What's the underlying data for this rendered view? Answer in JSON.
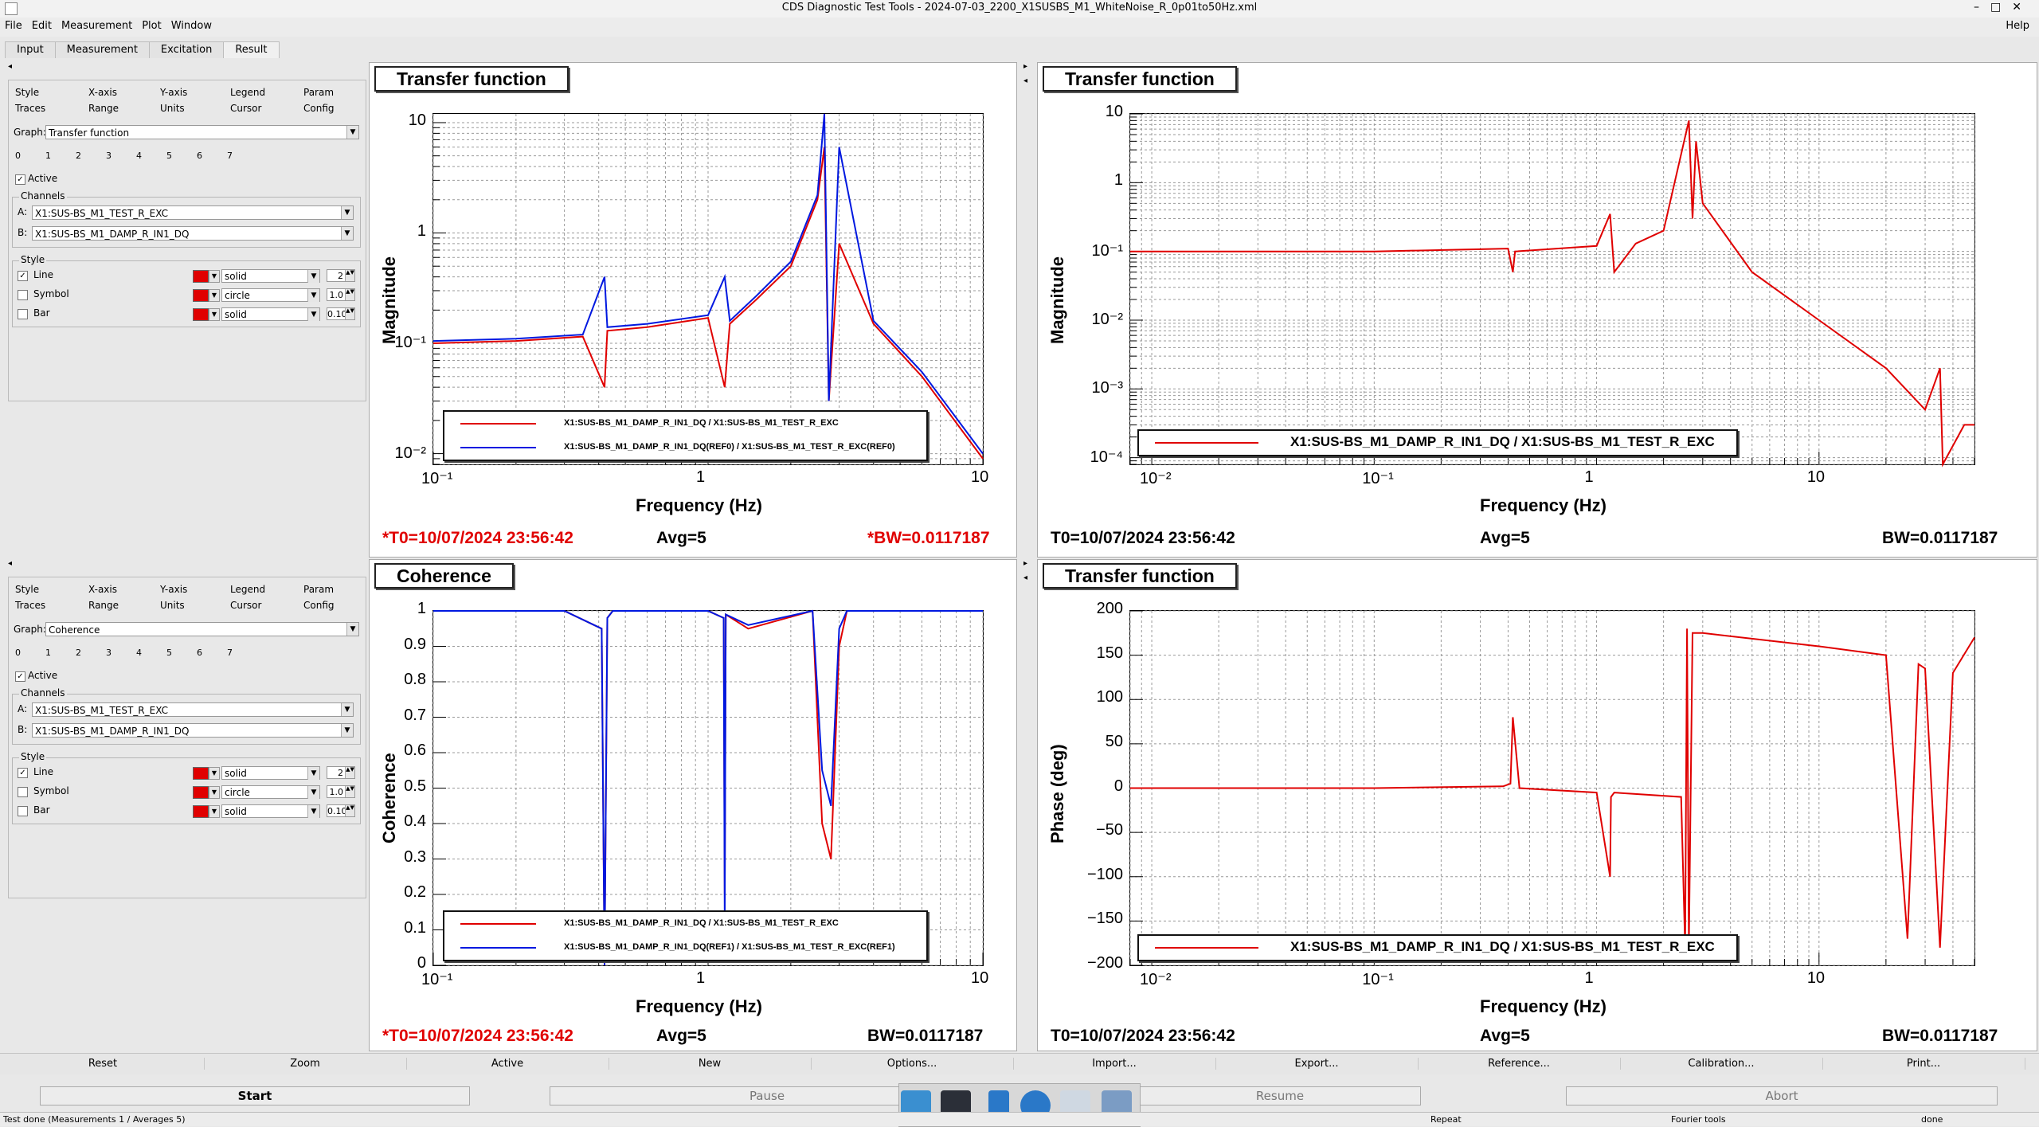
{
  "window": {
    "title": "CDS Diagnostic Test Tools - 2024-07-03_2200_X1SUSBS_M1_WhiteNoise_R_0p01to50Hz.xml",
    "controls": [
      "–",
      "□",
      "✕"
    ]
  },
  "menu": {
    "items": [
      "File",
      "Edit",
      "Measurement",
      "Plot",
      "Window"
    ],
    "help": "Help"
  },
  "tabs": [
    "Input",
    "Measurement",
    "Excitation",
    "Result"
  ],
  "left_panels": [
    {
      "subtabs_top": [
        "Style",
        "X-axis",
        "Y-axis",
        "Legend",
        "Param"
      ],
      "subtabs_bottom": [
        "Traces",
        "Range",
        "Units",
        "Cursor",
        "Config"
      ],
      "graph_label": "Graph:",
      "graph_value": "Transfer function",
      "trace_numbers": [
        "0",
        "1",
        "2",
        "3",
        "4",
        "5",
        "6",
        "7"
      ],
      "active_label": "Active",
      "channels_label": "Channels",
      "a_label": "A:",
      "a_value": "X1:SUS-BS_M1_TEST_R_EXC",
      "b_label": "B:",
      "b_value": "X1:SUS-BS_M1_DAMP_R_IN1_DQ",
      "style_label": "Style",
      "line_label": "Line",
      "line_style": "solid",
      "line_width": "2",
      "symbol_label": "Symbol",
      "symbol_style": "circle",
      "symbol_size": "1.0",
      "bar_label": "Bar",
      "bar_style": "solid",
      "bar_width": "0.10"
    },
    {
      "subtabs_top": [
        "Style",
        "X-axis",
        "Y-axis",
        "Legend",
        "Param"
      ],
      "subtabs_bottom": [
        "Traces",
        "Range",
        "Units",
        "Cursor",
        "Config"
      ],
      "graph_label": "Graph:",
      "graph_value": "Coherence",
      "trace_numbers": [
        "0",
        "1",
        "2",
        "3",
        "4",
        "5",
        "6",
        "7"
      ],
      "active_label": "Active",
      "channels_label": "Channels",
      "a_label": "A:",
      "a_value": "X1:SUS-BS_M1_TEST_R_EXC",
      "b_label": "B:",
      "b_value": "X1:SUS-BS_M1_DAMP_R_IN1_DQ",
      "style_label": "Style",
      "line_label": "Line",
      "line_style": "solid",
      "line_width": "2",
      "symbol_label": "Symbol",
      "symbol_style": "circle",
      "symbol_size": "1.0",
      "bar_label": "Bar",
      "bar_style": "solid",
      "bar_width": "0.10"
    }
  ],
  "graphs": [
    {
      "title": "Transfer function",
      "ylabel": "Magnitude",
      "xlabel": "Frequency (Hz)",
      "xticks": [
        "10⁻¹",
        "1",
        "10"
      ],
      "yticks": [
        "10",
        "1",
        "10⁻¹",
        "10⁻²"
      ],
      "legend": [
        "X1:SUS-BS_M1_DAMP_R_IN1_DQ / X1:SUS-BS_M1_TEST_R_EXC",
        "X1:SUS-BS_M1_DAMP_R_IN1_DQ(REF0) / X1:SUS-BS_M1_TEST_R_EXC(REF0)"
      ],
      "t0": "*T0=10/07/2024 23:56:42",
      "avg": "Avg=5",
      "bw": "*BW=0.0117187"
    },
    {
      "title": "Transfer function",
      "ylabel": "Magnitude",
      "xlabel": "Frequency (Hz)",
      "xticks": [
        "10⁻²",
        "10⁻¹",
        "1",
        "10"
      ],
      "yticks": [
        "10",
        "1",
        "10⁻¹",
        "10⁻²",
        "10⁻³",
        "10⁻⁴"
      ],
      "legend": [
        "X1:SUS-BS_M1_DAMP_R_IN1_DQ / X1:SUS-BS_M1_TEST_R_EXC"
      ],
      "t0": "T0=10/07/2024 23:56:42",
      "avg": "Avg=5",
      "bw": "BW=0.0117187"
    },
    {
      "title": "Coherence",
      "ylabel": "Coherence",
      "xlabel": "Frequency (Hz)",
      "xticks": [
        "10⁻¹",
        "1",
        "10"
      ],
      "yticks": [
        "1",
        "0.9",
        "0.8",
        "0.7",
        "0.6",
        "0.5",
        "0.4",
        "0.3",
        "0.2",
        "0.1",
        "0"
      ],
      "legend": [
        "X1:SUS-BS_M1_DAMP_R_IN1_DQ / X1:SUS-BS_M1_TEST_R_EXC",
        "X1:SUS-BS_M1_DAMP_R_IN1_DQ(REF1) / X1:SUS-BS_M1_TEST_R_EXC(REF1)"
      ],
      "t0": "*T0=10/07/2024 23:56:42",
      "avg": "Avg=5",
      "bw": "BW=0.0117187"
    },
    {
      "title": "Transfer function",
      "ylabel": "Phase (deg)",
      "xlabel": "Frequency (Hz)",
      "xticks": [
        "10⁻²",
        "10⁻¹",
        "1",
        "10"
      ],
      "yticks": [
        "200",
        "150",
        "100",
        "50",
        "0",
        "−50",
        "−100",
        "−150",
        "−200"
      ],
      "legend": [
        "X1:SUS-BS_M1_DAMP_R_IN1_DQ / X1:SUS-BS_M1_TEST_R_EXC"
      ],
      "t0": "T0=10/07/2024 23:56:42",
      "avg": "Avg=5",
      "bw": "BW=0.0117187"
    }
  ],
  "chart_data": [
    {
      "type": "line",
      "title": "Transfer function",
      "xlabel": "Frequency (Hz)",
      "ylabel": "Magnitude",
      "xscale": "log",
      "yscale": "log",
      "xlim": [
        0.1,
        10
      ],
      "ylim": [
        0.008,
        12
      ],
      "series": [
        {
          "name": "X1:SUS-BS_M1_DAMP_R_IN1_DQ / X1:SUS-BS_M1_TEST_R_EXC",
          "color": "#e00000",
          "x": [
            0.1,
            0.2,
            0.35,
            0.42,
            0.43,
            0.6,
            1.0,
            1.15,
            1.2,
            1.5,
            2.0,
            2.5,
            2.65,
            2.75,
            3.0,
            4.0,
            6.0,
            10
          ],
          "y": [
            0.1,
            0.105,
            0.115,
            0.04,
            0.13,
            0.14,
            0.17,
            0.04,
            0.15,
            0.25,
            0.5,
            2.0,
            6.0,
            0.03,
            0.8,
            0.15,
            0.05,
            0.009
          ]
        },
        {
          "name": "X1:SUS-BS_M1_DAMP_R_IN1_DQ(REF0) / X1:SUS-BS_M1_TEST_R_EXC(REF0)",
          "color": "#0018e0",
          "x": [
            0.1,
            0.2,
            0.35,
            0.42,
            0.43,
            0.6,
            1.0,
            1.15,
            1.2,
            1.5,
            2.0,
            2.5,
            2.65,
            2.75,
            3.0,
            4.0,
            6.0,
            10
          ],
          "y": [
            0.105,
            0.11,
            0.12,
            0.4,
            0.14,
            0.15,
            0.18,
            0.4,
            0.16,
            0.27,
            0.55,
            2.2,
            12,
            0.03,
            6.0,
            0.16,
            0.055,
            0.01
          ]
        }
      ]
    },
    {
      "type": "line",
      "title": "Transfer function",
      "xlabel": "Frequency (Hz)",
      "ylabel": "Magnitude",
      "xscale": "log",
      "yscale": "log",
      "xlim": [
        0.008,
        50
      ],
      "ylim": [
        8e-05,
        10
      ],
      "series": [
        {
          "name": "X1:SUS-BS_M1_DAMP_R_IN1_DQ / X1:SUS-BS_M1_TEST_R_EXC",
          "color": "#e00000",
          "x": [
            0.008,
            0.1,
            0.4,
            0.42,
            0.43,
            1.0,
            1.15,
            1.2,
            1.5,
            2.0,
            2.6,
            2.7,
            2.8,
            3.0,
            5.0,
            10,
            20,
            30,
            35,
            36,
            45,
            50
          ],
          "y": [
            0.1,
            0.1,
            0.11,
            0.05,
            0.1,
            0.12,
            0.35,
            0.05,
            0.13,
            0.2,
            8.0,
            0.3,
            4.0,
            0.5,
            0.05,
            0.01,
            0.002,
            0.0005,
            0.002,
            8e-05,
            0.0003,
            0.0003
          ]
        }
      ]
    },
    {
      "type": "line",
      "title": "Coherence",
      "xlabel": "Frequency (Hz)",
      "ylabel": "Coherence",
      "xscale": "log",
      "xlim": [
        0.1,
        10
      ],
      "ylim": [
        0,
        1
      ],
      "series": [
        {
          "name": "X1:SUS-BS_M1_DAMP_R_IN1_DQ / X1:SUS-BS_M1_TEST_R_EXC",
          "color": "#e00000",
          "x": [
            0.1,
            0.3,
            0.41,
            0.42,
            0.43,
            0.45,
            1.0,
            1.14,
            1.15,
            1.16,
            1.4,
            2.4,
            2.6,
            2.8,
            3.0,
            3.2,
            10
          ],
          "y": [
            1.0,
            1.0,
            0.95,
            0.0,
            0.98,
            1.0,
            1.0,
            0.98,
            0.2,
            0.99,
            0.95,
            1.0,
            0.4,
            0.3,
            0.9,
            1.0,
            1.0
          ]
        },
        {
          "name": "X1:SUS-BS_M1_DAMP_R_IN1_DQ(REF1) / X1:SUS-BS_M1_TEST_R_EXC(REF1)",
          "color": "#0018e0",
          "x": [
            0.1,
            0.3,
            0.41,
            0.42,
            0.43,
            0.45,
            1.0,
            1.14,
            1.15,
            1.16,
            1.4,
            2.4,
            2.6,
            2.8,
            3.0,
            3.2,
            10
          ],
          "y": [
            1.0,
            1.0,
            0.95,
            0.0,
            0.98,
            1.0,
            1.0,
            0.98,
            0.1,
            0.99,
            0.96,
            1.0,
            0.55,
            0.45,
            0.95,
            1.0,
            1.0
          ]
        }
      ]
    },
    {
      "type": "line",
      "title": "Transfer function",
      "xlabel": "Frequency (Hz)",
      "ylabel": "Phase (deg)",
      "xscale": "log",
      "xlim": [
        0.008,
        50
      ],
      "ylim": [
        -200,
        200
      ],
      "series": [
        {
          "name": "X1:SUS-BS_M1_DAMP_R_IN1_DQ / X1:SUS-BS_M1_TEST_R_EXC",
          "color": "#e00000",
          "x": [
            0.008,
            0.1,
            0.38,
            0.41,
            0.42,
            0.45,
            1.0,
            1.15,
            1.16,
            1.2,
            2.4,
            2.5,
            2.55,
            2.6,
            2.7,
            3.0,
            10,
            20,
            25,
            28,
            30,
            35,
            40,
            50
          ],
          "y": [
            0,
            0,
            2,
            5,
            80,
            0,
            -5,
            -100,
            -10,
            -5,
            -10,
            -180,
            180,
            -180,
            175,
            175,
            160,
            150,
            -170,
            140,
            135,
            -180,
            130,
            170
          ]
        }
      ]
    }
  ],
  "bottom_buttons": [
    "Reset",
    "Zoom",
    "Active",
    "New",
    "Options...",
    "Import...",
    "Export...",
    "Reference...",
    "Calibration...",
    "Print..."
  ],
  "control_buttons": [
    "Start",
    "Pause",
    "Resume",
    "Abort"
  ],
  "status": {
    "left": "Test done (Measurements 1 / Averages 5)",
    "repeat": "Repeat",
    "tools": "Fourier tools",
    "state": "done"
  },
  "colors": {
    "trace_red": "#e00000",
    "trace_blue": "#0018e0"
  }
}
